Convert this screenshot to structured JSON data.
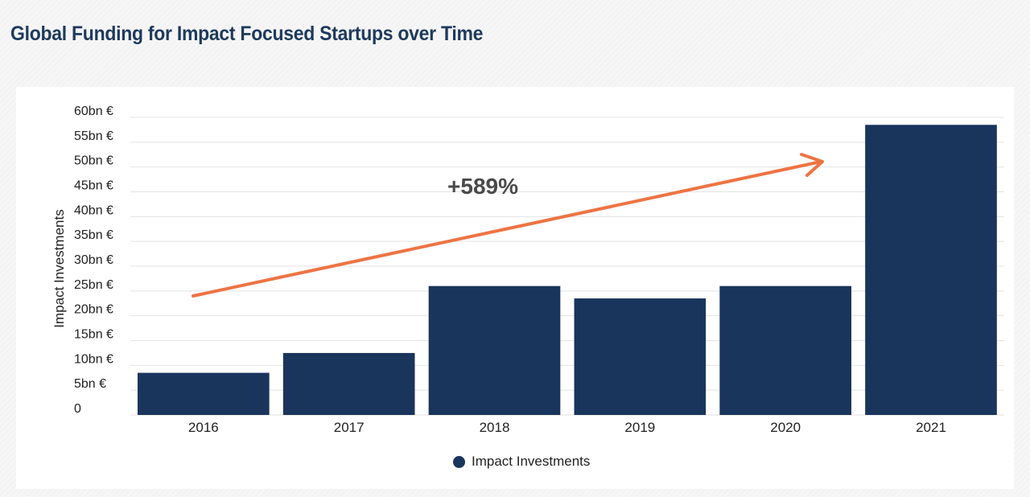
{
  "title": "Global Funding for Impact Focused Startups over Time",
  "colors": {
    "bar": "#1a355c",
    "arrow": "#ee7444",
    "title": "#1d3a5c",
    "grid": "#e3e3e3"
  },
  "annotation": {
    "text": "+589%"
  },
  "chart_data": {
    "type": "bar",
    "title": "Global Funding for Impact Focused Startups over Time",
    "xlabel": "",
    "ylabel": "Impact Investments",
    "categories": [
      "2016",
      "2017",
      "2018",
      "2019",
      "2020",
      "2021"
    ],
    "series": [
      {
        "name": "Impact Investments",
        "values": [
          8.5,
          12.5,
          26,
          23.5,
          26,
          58.5
        ]
      }
    ],
    "ylim": [
      0,
      60
    ],
    "yticks": [
      0,
      5,
      10,
      15,
      20,
      25,
      30,
      35,
      40,
      45,
      50,
      55,
      60
    ],
    "ytick_labels": [
      "0",
      "5bn €",
      "10bn €",
      "15bn €",
      "20bn €",
      "25bn €",
      "30bn €",
      "35bn €",
      "40bn €",
      "45bn €",
      "50bn €",
      "55bn €",
      "60bn €"
    ],
    "grid": true,
    "legend": "bottom-center",
    "annotation": "+589%"
  }
}
